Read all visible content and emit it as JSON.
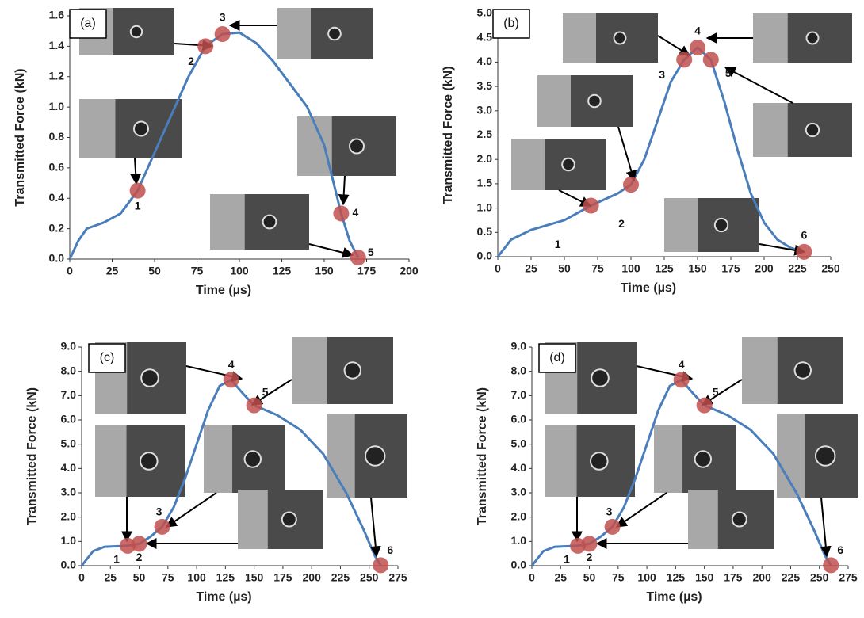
{
  "chart_data": [
    {
      "type": "line",
      "panel_label": "(a)",
      "x_label": "Time (µs)",
      "y_label": "Transmitted Force (kN)",
      "xlim": [
        0,
        200
      ],
      "xticks": [
        0,
        25,
        50,
        75,
        100,
        125,
        150,
        175,
        200
      ],
      "ylim": [
        0,
        1.6
      ],
      "yticks": [
        {
          "value": 0,
          "label": "0.0"
        },
        {
          "value": 0.2,
          "label": "0.2"
        },
        {
          "value": 0.4,
          "label": "0.4"
        },
        {
          "value": 0.6,
          "label": "0.6"
        },
        {
          "value": 0.8,
          "label": "0.8"
        },
        {
          "value": 1.0,
          "label": "1.0"
        },
        {
          "value": 1.2,
          "label": "1.2"
        },
        {
          "value": 1.4,
          "label": "1.4"
        },
        {
          "value": 1.6,
          "label": "1.6"
        }
      ],
      "series": [
        {
          "color": "#4a7ebb",
          "x": [
            0,
            5,
            10,
            20,
            30,
            40,
            50,
            60,
            70,
            80,
            90,
            100,
            110,
            120,
            130,
            140,
            150,
            160,
            165,
            170
          ],
          "values": [
            0,
            0.12,
            0.2,
            0.24,
            0.3,
            0.45,
            0.7,
            0.95,
            1.2,
            1.4,
            1.48,
            1.49,
            1.42,
            1.3,
            1.15,
            1.0,
            0.75,
            0.3,
            0.12,
            0.01
          ]
        }
      ],
      "points": {
        "color": "#c0504d",
        "x": [
          40,
          80,
          90,
          160,
          170
        ],
        "values": [
          0.45,
          1.4,
          1.48,
          0.3,
          0.01
        ],
        "labels": [
          "1",
          "2",
          "3",
          "4",
          "5"
        ]
      }
    },
    {
      "type": "line",
      "panel_label": "(b)",
      "x_label": "Time (µs)",
      "y_label": "Transmitted Force (kN)",
      "xlim": [
        0,
        250
      ],
      "xticks": [
        0,
        25,
        50,
        75,
        100,
        125,
        150,
        175,
        200,
        225,
        250
      ],
      "ylim": [
        0,
        5
      ],
      "yticks": [
        {
          "value": 0,
          "label": "0.0"
        },
        {
          "value": 0.5,
          "label": "0.5"
        },
        {
          "value": 1,
          "label": "1.0"
        },
        {
          "value": 1.5,
          "label": "1.5"
        },
        {
          "value": 2,
          "label": "2.0"
        },
        {
          "value": 2.5,
          "label": "2.5"
        },
        {
          "value": 3,
          "label": "3.0"
        },
        {
          "value": 3.5,
          "label": "3.5"
        },
        {
          "value": 4,
          "label": "4.0"
        },
        {
          "value": 4.5,
          "label": "4.5"
        },
        {
          "value": 5,
          "label": "5.0"
        }
      ],
      "series": [
        {
          "color": "#4a7ebb",
          "x": [
            0,
            10,
            25,
            50,
            70,
            90,
            100,
            110,
            120,
            130,
            140,
            150,
            160,
            170,
            180,
            190,
            200,
            210,
            220,
            230
          ],
          "values": [
            0,
            0.35,
            0.55,
            0.75,
            1.05,
            1.3,
            1.48,
            2.0,
            2.8,
            3.6,
            4.05,
            4.3,
            4.05,
            3.2,
            2.2,
            1.3,
            0.7,
            0.35,
            0.18,
            0.1
          ]
        }
      ],
      "points": {
        "color": "#c0504d",
        "x": [
          70,
          100,
          140,
          150,
          160,
          230
        ],
        "values": [
          1.05,
          1.48,
          4.05,
          4.3,
          4.05,
          0.1
        ],
        "labels": [
          "1",
          "2",
          "3",
          "4",
          "5",
          "6"
        ]
      }
    },
    {
      "type": "line",
      "panel_label": "(c)",
      "x_label": "Time (µs)",
      "y_label": "Transmitted Force (kN)",
      "xlim": [
        0,
        275
      ],
      "xticks": [
        0,
        25,
        50,
        75,
        100,
        125,
        150,
        175,
        200,
        225,
        250,
        275
      ],
      "ylim": [
        0,
        9
      ],
      "yticks": [
        {
          "value": 0,
          "label": "0.0"
        },
        {
          "value": 1,
          "label": "1.0"
        },
        {
          "value": 2,
          "label": "2.0"
        },
        {
          "value": 3,
          "label": "3.0"
        },
        {
          "value": 4,
          "label": "4.0"
        },
        {
          "value": 5,
          "label": "5.0"
        },
        {
          "value": 6,
          "label": "6.0"
        },
        {
          "value": 7,
          "label": "7.0"
        },
        {
          "value": 8,
          "label": "8.0"
        },
        {
          "value": 9,
          "label": "9.0"
        }
      ],
      "series": [
        {
          "color": "#4a7ebb",
          "x": [
            0,
            10,
            20,
            40,
            50,
            60,
            70,
            80,
            90,
            100,
            110,
            120,
            130,
            140,
            150,
            170,
            190,
            210,
            230,
            245,
            255,
            260
          ],
          "values": [
            0,
            0.6,
            0.78,
            0.82,
            0.9,
            1.2,
            1.6,
            2.4,
            3.6,
            5.0,
            6.4,
            7.4,
            7.65,
            7.1,
            6.6,
            6.2,
            5.6,
            4.6,
            3.0,
            1.5,
            0.4,
            0.02
          ]
        }
      ],
      "points": {
        "color": "#c0504d",
        "x": [
          40,
          50,
          70,
          130,
          150,
          260
        ],
        "values": [
          0.82,
          0.9,
          1.6,
          7.65,
          6.6,
          0.02
        ],
        "labels": [
          "1",
          "2",
          "3",
          "4",
          "5",
          "6"
        ]
      }
    },
    {
      "type": "line",
      "panel_label": "(d)",
      "x_label": "Time (µs)",
      "y_label": "Transmitted Force (kN)",
      "xlim": [
        0,
        275
      ],
      "xticks": [
        0,
        25,
        50,
        75,
        100,
        125,
        150,
        175,
        200,
        225,
        250,
        275
      ],
      "ylim": [
        0,
        9
      ],
      "yticks": [
        {
          "value": 0,
          "label": "0.0"
        },
        {
          "value": 1,
          "label": "1.0"
        },
        {
          "value": 2,
          "label": "2.0"
        },
        {
          "value": 3,
          "label": "3.0"
        },
        {
          "value": 4,
          "label": "4.0"
        },
        {
          "value": 5,
          "label": "5.0"
        },
        {
          "value": 6,
          "label": "6.0"
        },
        {
          "value": 7,
          "label": "7.0"
        },
        {
          "value": 8,
          "label": "8.0"
        },
        {
          "value": 9,
          "label": "9.0"
        }
      ],
      "series": [
        {
          "color": "#4a7ebb",
          "x": [
            0,
            10,
            20,
            40,
            50,
            60,
            70,
            80,
            90,
            100,
            110,
            120,
            130,
            140,
            150,
            170,
            190,
            210,
            230,
            245,
            255,
            260
          ],
          "values": [
            0,
            0.6,
            0.78,
            0.82,
            0.9,
            1.2,
            1.6,
            2.4,
            3.6,
            5.0,
            6.4,
            7.4,
            7.65,
            7.1,
            6.6,
            6.2,
            5.6,
            4.6,
            3.0,
            1.5,
            0.4,
            0.02
          ]
        }
      ],
      "points": {
        "color": "#c0504d",
        "x": [
          40,
          50,
          70,
          130,
          150,
          260
        ],
        "values": [
          0.82,
          0.9,
          1.6,
          7.65,
          6.6,
          0.02
        ],
        "labels": [
          "1",
          "2",
          "3",
          "4",
          "5",
          "6"
        ]
      }
    }
  ]
}
